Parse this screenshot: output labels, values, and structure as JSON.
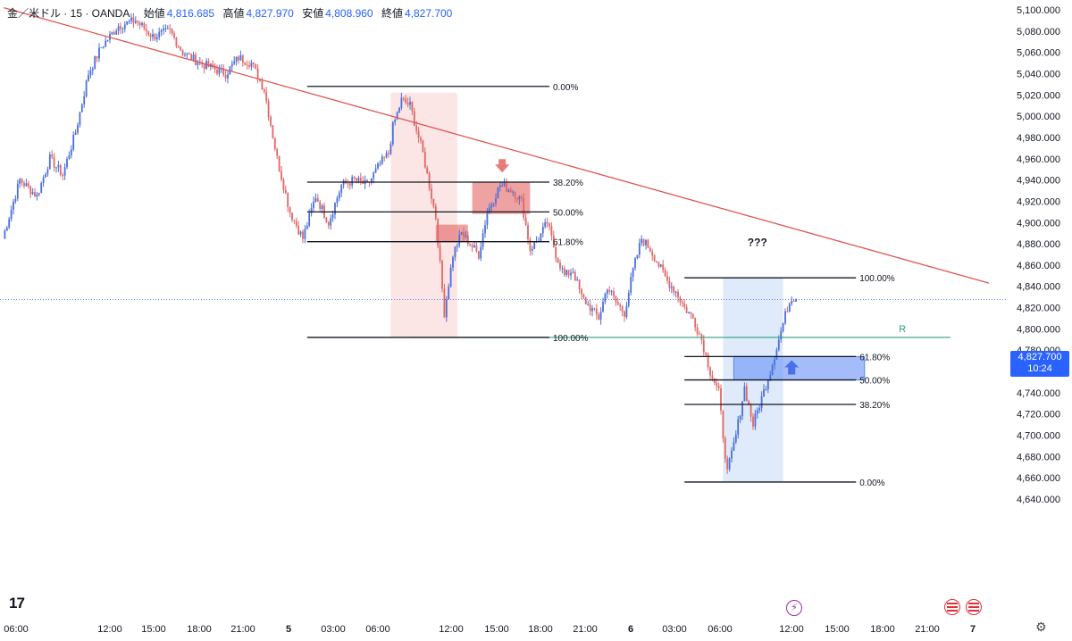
{
  "header": {
    "symbol": "金／米ドル · 15 · OANDA",
    "open_label": "始値",
    "open_value": "4,816.685",
    "high_label": "高値",
    "high_value": "4,827.970",
    "low_label": "安値",
    "low_value": "4,808.960",
    "close_label": "終値",
    "close_value": "4,827.700"
  },
  "price_tag": {
    "price": "4,827.700",
    "countdown": "10:24"
  },
  "colors": {
    "up": "#4a6fd8",
    "down": "#e06666",
    "trendline": "#e05555",
    "fib": "#131722",
    "support": "#2e9e80",
    "accent": "#2962ff"
  },
  "icons": {
    "logo": "tradingview-logo-icon",
    "event": "lightning-event-icon",
    "flags": "us-flag-icon",
    "settings": "gear-icon"
  },
  "chart_data": {
    "type": "candlestick",
    "title": "",
    "symbol": "XAU/USD",
    "timeframe": "15",
    "xlabel": "",
    "ylabel": "",
    "ylim": [
      4640,
      5100
    ],
    "y_ticks": [
      "5,100.000",
      "5,080.000",
      "5,060.000",
      "5,040.000",
      "5,020.000",
      "5,000.000",
      "4,980.000",
      "4,960.000",
      "4,940.000",
      "4,920.000",
      "4,900.000",
      "4,880.000",
      "4,860.000",
      "4,840.000",
      "4,820.000",
      "4,800.000",
      "4,780.000",
      "4,760.000",
      "4,740.000",
      "4,720.000",
      "4,700.000",
      "4,680.000",
      "4,660.000",
      "4,640.000"
    ],
    "y_tick_values": [
      5100,
      5080,
      5060,
      5040,
      5020,
      5000,
      4980,
      4960,
      4940,
      4920,
      4900,
      4880,
      4860,
      4840,
      4820,
      4800,
      4780,
      4760,
      4740,
      4720,
      4700,
      4680,
      4660,
      4640
    ],
    "x_ticks": [
      {
        "label": "06:00",
        "bold": false
      },
      {
        "label": "12:00",
        "bold": false
      },
      {
        "label": "15:00",
        "bold": false
      },
      {
        "label": "18:00",
        "bold": false
      },
      {
        "label": "21:00",
        "bold": false
      },
      {
        "label": "5",
        "bold": true
      },
      {
        "label": "03:00",
        "bold": false
      },
      {
        "label": "06:00",
        "bold": false
      },
      {
        "label": "12:00",
        "bold": false
      },
      {
        "label": "15:00",
        "bold": false
      },
      {
        "label": "18:00",
        "bold": false
      },
      {
        "label": "21:00",
        "bold": false
      },
      {
        "label": "6",
        "bold": true
      },
      {
        "label": "03:00",
        "bold": false
      },
      {
        "label": "06:00",
        "bold": false
      },
      {
        "label": "12:00",
        "bold": false
      },
      {
        "label": "15:00",
        "bold": false
      },
      {
        "label": "18:00",
        "bold": false
      },
      {
        "label": "21:00",
        "bold": false
      },
      {
        "label": "7",
        "bold": true
      }
    ],
    "anchors": [
      [
        0,
        4885
      ],
      [
        8,
        4940
      ],
      [
        16,
        4925
      ],
      [
        22,
        4960
      ],
      [
        28,
        4945
      ],
      [
        34,
        4985
      ],
      [
        40,
        5040
      ],
      [
        46,
        5065
      ],
      [
        54,
        5085
      ],
      [
        62,
        5090
      ],
      [
        70,
        5075
      ],
      [
        78,
        5080
      ],
      [
        84,
        5060
      ],
      [
        92,
        5050
      ],
      [
        98,
        5045
      ],
      [
        104,
        5040
      ],
      [
        110,
        5055
      ],
      [
        116,
        5050
      ],
      [
        122,
        5025
      ],
      [
        128,
        4960
      ],
      [
        134,
        4910
      ],
      [
        140,
        4885
      ],
      [
        146,
        4925
      ],
      [
        152,
        4900
      ],
      [
        158,
        4935
      ],
      [
        164,
        4940
      ],
      [
        170,
        4935
      ],
      [
        176,
        4955
      ],
      [
        180,
        4965
      ],
      [
        182,
        4990
      ],
      [
        186,
        5015
      ],
      [
        190,
        5010
      ],
      [
        196,
        4965
      ],
      [
        202,
        4905
      ],
      [
        206,
        4815
      ],
      [
        210,
        4870
      ],
      [
        214,
        4890
      ],
      [
        218,
        4880
      ],
      [
        222,
        4870
      ],
      [
        226,
        4910
      ],
      [
        232,
        4935
      ],
      [
        238,
        4930
      ],
      [
        242,
        4920
      ],
      [
        246,
        4875
      ],
      [
        250,
        4885
      ],
      [
        254,
        4900
      ],
      [
        258,
        4870
      ],
      [
        262,
        4850
      ],
      [
        266,
        4855
      ],
      [
        270,
        4830
      ],
      [
        274,
        4820
      ],
      [
        278,
        4810
      ],
      [
        282,
        4840
      ],
      [
        286,
        4825
      ],
      [
        290,
        4815
      ],
      [
        294,
        4855
      ],
      [
        298,
        4885
      ],
      [
        302,
        4875
      ],
      [
        306,
        4860
      ],
      [
        310,
        4845
      ],
      [
        314,
        4835
      ],
      [
        318,
        4820
      ],
      [
        322,
        4810
      ],
      [
        326,
        4790
      ],
      [
        330,
        4760
      ],
      [
        334,
        4740
      ],
      [
        336,
        4700
      ],
      [
        338,
        4665
      ],
      [
        342,
        4700
      ],
      [
        346,
        4745
      ],
      [
        350,
        4710
      ],
      [
        354,
        4735
      ],
      [
        358,
        4760
      ],
      [
        362,
        4790
      ],
      [
        366,
        4820
      ],
      [
        368,
        4830
      ],
      [
        370,
        4827.7
      ]
    ],
    "last_price": 4827.7,
    "trendline": {
      "from": [
        0.5,
        5102
      ],
      "to": [
        460,
        4843
      ]
    },
    "fib_sets": [
      {
        "i_from": 142,
        "i_to": 255,
        "levels": [
          {
            "label": "0.00%",
            "price": 5028
          },
          {
            "label": "38.20%",
            "price": 4938
          },
          {
            "label": "50.00%",
            "price": 4910
          },
          {
            "label": "61.80%",
            "price": 4882
          },
          {
            "label": "100.00%",
            "price": 4792
          }
        ]
      },
      {
        "i_from": 318,
        "i_to": 398,
        "levels": [
          {
            "label": "100.00%",
            "price": 4848
          },
          {
            "label": "61.80%",
            "price": 4774
          },
          {
            "label": "50.00%",
            "price": 4752
          },
          {
            "label": "38.20%",
            "price": 4729
          },
          {
            "label": "0.00%",
            "price": 4656
          }
        ]
      }
    ],
    "support_line": {
      "price": 4792,
      "i_from": 190,
      "i_to": 442,
      "label": "R"
    },
    "zones": [
      {
        "kind": "pink-range",
        "i_from": 181,
        "i_to": 212,
        "top": 5022,
        "bottom": 4792
      },
      {
        "kind": "red-box",
        "i_from": 202,
        "i_to": 217,
        "top": 4898,
        "bottom": 4882
      },
      {
        "kind": "red-box",
        "i_from": 219,
        "i_to": 246,
        "top": 4938,
        "bottom": 4908
      },
      {
        "kind": "blue-range",
        "i_from": 336,
        "i_to": 364,
        "top": 4848,
        "bottom": 4656
      },
      {
        "kind": "blue-box",
        "i_from": 341,
        "i_to": 402,
        "top": 4774,
        "bottom": 4752
      }
    ],
    "annotations": [
      {
        "text": "???",
        "i": 352,
        "price": 4878,
        "kind": "label"
      },
      {
        "text": "",
        "i": 233,
        "price": 4952,
        "kind": "arrow-down"
      },
      {
        "text": "",
        "i": 368,
        "price": 4763,
        "kind": "arrow-up"
      }
    ]
  }
}
